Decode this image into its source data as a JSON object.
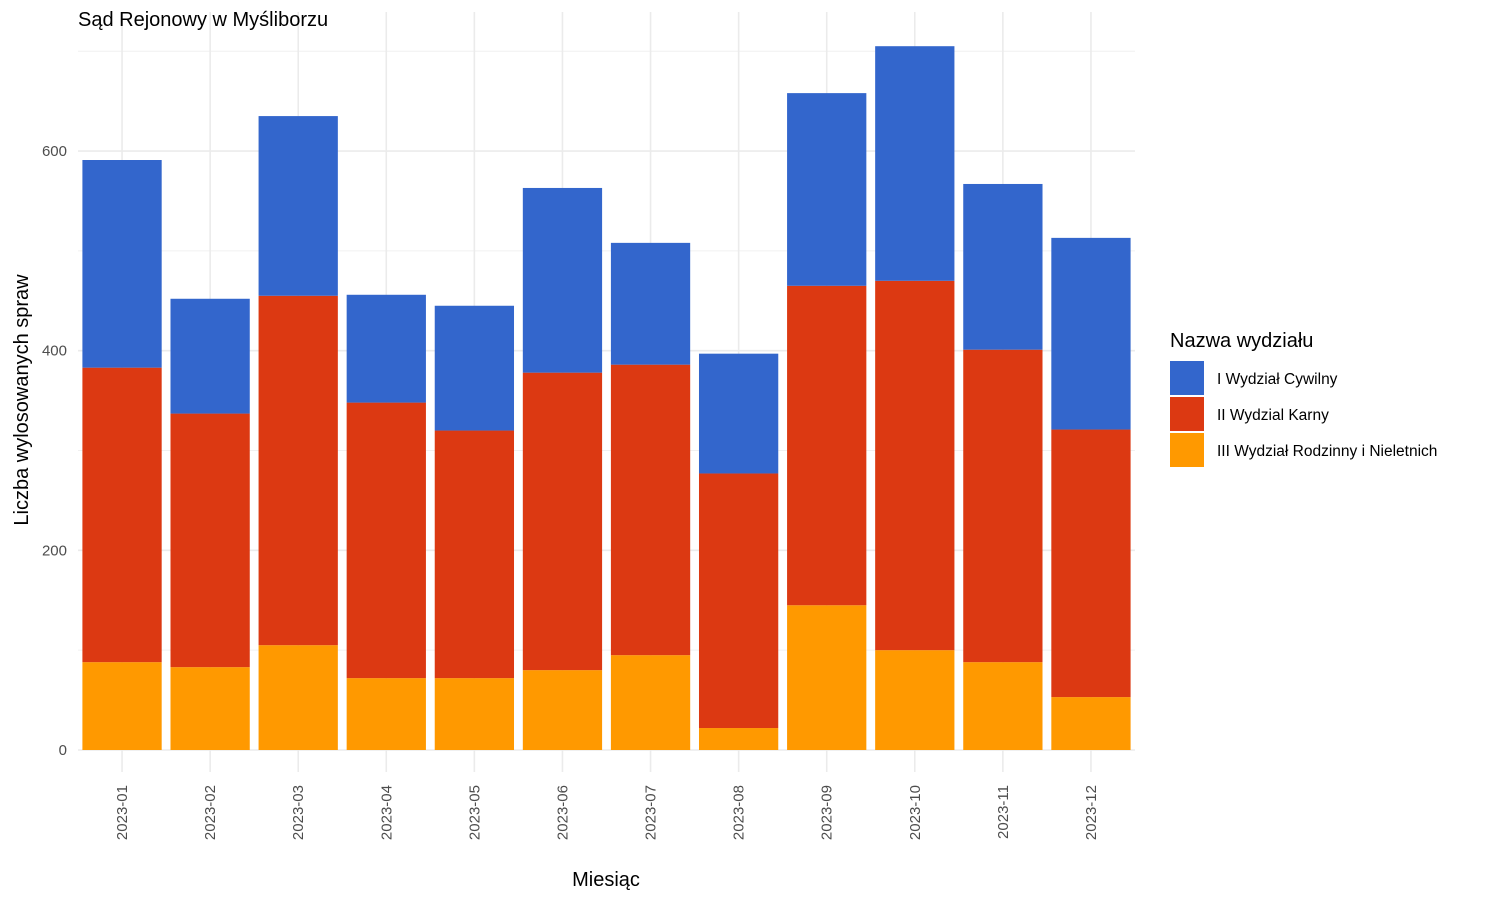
{
  "chart_data": {
    "type": "bar",
    "stacked": true,
    "title": "Sąd Rejonowy w Myśliborzu",
    "xlabel": "Miesiąc",
    "ylabel": "Liczba wylosowanych spraw",
    "ylim": [
      0,
      710
    ],
    "yticks": [
      0,
      200,
      400,
      600
    ],
    "grid": true,
    "legend": {
      "title": "Nazwa wydziału",
      "position": "right"
    },
    "categories": [
      "2023-01",
      "2023-02",
      "2023-03",
      "2023-04",
      "2023-05",
      "2023-06",
      "2023-07",
      "2023-08",
      "2023-09",
      "2023-10",
      "2023-11",
      "2023-12"
    ],
    "series": [
      {
        "name": "I Wydział Cywilny",
        "color": "#3366CC",
        "values": [
          208,
          115,
          180,
          108,
          125,
          185,
          122,
          120,
          193,
          235,
          166,
          192
        ]
      },
      {
        "name": "II Wydzial Karny",
        "color": "#DC3912",
        "values": [
          295,
          254,
          350,
          276,
          248,
          298,
          291,
          255,
          320,
          370,
          313,
          268
        ]
      },
      {
        "name": "III Wydział Rodzinny i Nieletnich",
        "color": "#FF9900",
        "values": [
          88,
          83,
          105,
          72,
          72,
          80,
          95,
          22,
          145,
          100,
          88,
          53
        ]
      }
    ]
  }
}
